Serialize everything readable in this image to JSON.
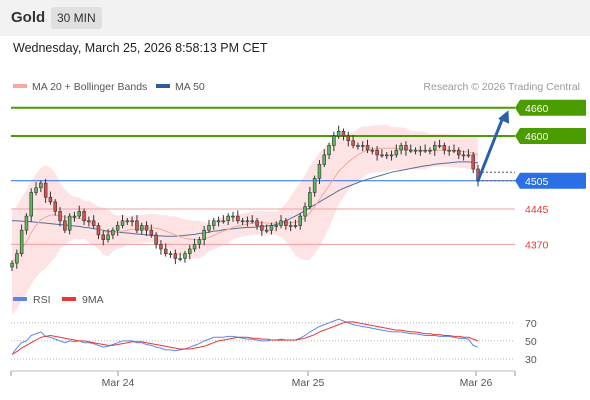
{
  "header": {
    "title": "Gold",
    "timeframe": "30 MIN",
    "datetime": "Wednesday, March 25, 2026 8:58:13 PM CET",
    "copyright": "Research © 2026 Trading Central"
  },
  "legend": {
    "ma20_bb": "MA 20 + Bollinger Bands",
    "ma50": "MA 50",
    "rsi": "RSI",
    "ma9": "9MA"
  },
  "colors": {
    "green": "#4a9c00",
    "blue": "#2a6fe6",
    "red_line": "#f0a0a0",
    "red_text": "#e53935",
    "bb_fill": "#fde3e3",
    "ma20": "#f4a9a0",
    "ma50": "#51719a",
    "rsi": "#5b88e8",
    "rsi_ma": "#e53935"
  },
  "chart_data": [
    {
      "type": "candlestick",
      "price_axis": {
        "min": 4290,
        "max": 4685
      },
      "x_labels": [
        "Mar 24",
        "Mar 25",
        "Mar 26"
      ],
      "levels": [
        {
          "value": 4660,
          "label": "4660",
          "kind": "resistance"
        },
        {
          "value": 4600,
          "label": "4600",
          "kind": "resistance"
        },
        {
          "value": 4505,
          "label": "4505",
          "kind": "current"
        },
        {
          "value": 4445,
          "label": "4445",
          "kind": "support"
        },
        {
          "value": 4370,
          "label": "4370",
          "kind": "support"
        }
      ],
      "close_series": [
        4330,
        4350,
        4400,
        4430,
        4480,
        4490,
        4500,
        4470,
        4460,
        4440,
        4420,
        4400,
        4430,
        4430,
        4440,
        4420,
        4420,
        4410,
        4390,
        4380,
        4390,
        4400,
        4410,
        4420,
        4420,
        4420,
        4400,
        4410,
        4400,
        4390,
        4370,
        4360,
        4350,
        4350,
        4340,
        4340,
        4350,
        4360,
        4370,
        4380,
        4400,
        4410,
        4420,
        4420,
        4420,
        4430,
        4430,
        4420,
        4420,
        4420,
        4420,
        4410,
        4400,
        4400,
        4410,
        4410,
        4420,
        4410,
        4410,
        4410,
        4430,
        4450,
        4480,
        4510,
        4540,
        4560,
        4580,
        4600,
        4610,
        4600,
        4590,
        4580,
        4580,
        4580,
        4570,
        4570,
        4560,
        4560,
        4560,
        4560,
        4570,
        4580,
        4570,
        4570,
        4570,
        4570,
        4570,
        4570,
        4580,
        4580,
        4570,
        4570,
        4570,
        4560,
        4560,
        4560,
        4530,
        4505
      ],
      "ma20_series": [
        4330,
        4342,
        4360,
        4375,
        4395,
        4410,
        4422,
        4428,
        4432,
        4432,
        4430,
        4428,
        4426,
        4426,
        4425,
        4422,
        4418,
        4412,
        4405,
        4398,
        4395,
        4395,
        4396,
        4398,
        4400,
        4402,
        4402,
        4403,
        4404,
        4405,
        4404,
        4402,
        4398,
        4394,
        4390,
        4386,
        4383,
        4381,
        4380,
        4380,
        4382,
        4385,
        4389,
        4394,
        4398,
        4402,
        4406,
        4409,
        4411,
        4413,
        4415,
        4416,
        4416,
        4415,
        4415,
        4415,
        4416,
        4416,
        4416,
        4417,
        4420,
        4427,
        4437,
        4450,
        4465,
        4480,
        4495,
        4510,
        4525,
        4535,
        4545,
        4553,
        4560,
        4566,
        4570,
        4572,
        4573,
        4574,
        4574,
        4574,
        4574,
        4573,
        4572,
        4571,
        4570,
        4569,
        4569,
        4569,
        4570,
        4570,
        4570,
        4570,
        4569,
        4568,
        4567,
        4566,
        4564,
        4560
      ],
      "ma50_series": [
        4420,
        4420,
        4419,
        4419,
        4418,
        4417,
        4416,
        4415,
        4414,
        4413,
        4412,
        4411,
        4410,
        4409,
        4408,
        4406,
        4405,
        4403,
        4402,
        4400,
        4398,
        4397,
        4396,
        4395,
        4394,
        4393,
        4392,
        4391,
        4390,
        4389,
        4388,
        4388,
        4387,
        4387,
        4387,
        4388,
        4389,
        4390,
        4391,
        4393,
        4394,
        4396,
        4398,
        4399,
        4401,
        4402,
        4403,
        4404,
        4405,
        4406,
        4406,
        4407,
        4408,
        4409,
        4410,
        4412,
        4415,
        4420,
        4425,
        4430,
        4436,
        4442,
        4448,
        4454,
        4460,
        4466,
        4472,
        4478,
        4484,
        4489,
        4493,
        4497,
        4501,
        4505,
        4508,
        4511,
        4514,
        4517,
        4520,
        4523,
        4525,
        4527,
        4529,
        4531,
        4533,
        4535,
        4537,
        4538,
        4540,
        4541,
        4542,
        4543,
        4544,
        4545,
        4545,
        4545,
        4544,
        4543
      ],
      "bb_width_series": [
        110,
        110,
        110,
        110,
        110,
        110,
        110,
        110,
        100,
        90,
        70,
        60,
        50,
        45,
        45,
        40,
        45,
        45,
        45,
        50,
        50,
        40,
        35,
        35,
        30,
        30,
        30,
        30,
        30,
        30,
        30,
        30,
        35,
        35,
        40,
        40,
        40,
        40,
        40,
        40,
        35,
        30,
        30,
        30,
        30,
        30,
        25,
        25,
        25,
        25,
        25,
        25,
        25,
        25,
        25,
        25,
        30,
        40,
        55,
        70,
        80,
        90,
        100,
        100,
        100,
        95,
        90,
        80,
        70,
        65,
        60,
        55,
        55,
        55,
        50,
        50,
        50,
        50,
        50,
        45,
        45,
        45,
        45,
        40,
        40,
        40,
        40,
        35,
        35,
        35,
        35,
        35,
        35,
        35,
        35,
        35,
        35,
        35
      ]
    },
    {
      "type": "line",
      "name": "RSI",
      "y_axis": {
        "min": 20,
        "max": 82,
        "ticks": [
          70,
          50,
          30
        ]
      },
      "rsi_series": [
        35,
        42,
        48,
        50,
        56,
        58,
        60,
        55,
        54,
        52,
        50,
        48,
        50,
        49,
        50,
        48,
        48,
        47,
        45,
        43,
        44,
        46,
        48,
        50,
        50,
        50,
        48,
        48,
        46,
        45,
        43,
        42,
        40,
        40,
        39,
        40,
        41,
        43,
        45,
        47,
        50,
        52,
        54,
        54,
        54,
        55,
        55,
        54,
        53,
        52,
        52,
        51,
        50,
        50,
        51,
        51,
        52,
        51,
        51,
        51,
        53,
        56,
        60,
        63,
        66,
        68,
        70,
        72,
        74,
        72,
        70,
        68,
        67,
        66,
        65,
        64,
        63,
        62,
        61,
        60,
        60,
        60,
        59,
        58,
        58,
        57,
        56,
        56,
        56,
        55,
        55,
        55,
        54,
        53,
        53,
        52,
        45,
        43
      ],
      "rsi_ma_series": [
        35,
        38,
        42,
        45,
        48,
        51,
        54,
        55,
        56,
        55,
        54,
        53,
        52,
        51,
        50,
        50,
        49,
        48,
        47,
        46,
        45,
        45,
        46,
        47,
        48,
        49,
        49,
        49,
        48,
        47,
        46,
        45,
        44,
        43,
        42,
        41,
        41,
        41,
        42,
        43,
        44,
        46,
        48,
        50,
        51,
        52,
        53,
        54,
        54,
        54,
        53,
        53,
        52,
        52,
        51,
        51,
        51,
        51,
        51,
        51,
        52,
        53,
        55,
        57,
        60,
        62,
        64,
        66,
        68,
        70,
        71,
        71,
        70,
        69,
        68,
        67,
        66,
        65,
        64,
        63,
        62,
        62,
        61,
        60,
        60,
        59,
        58,
        58,
        57,
        57,
        56,
        56,
        55,
        55,
        54,
        54,
        52,
        50
      ]
    }
  ]
}
